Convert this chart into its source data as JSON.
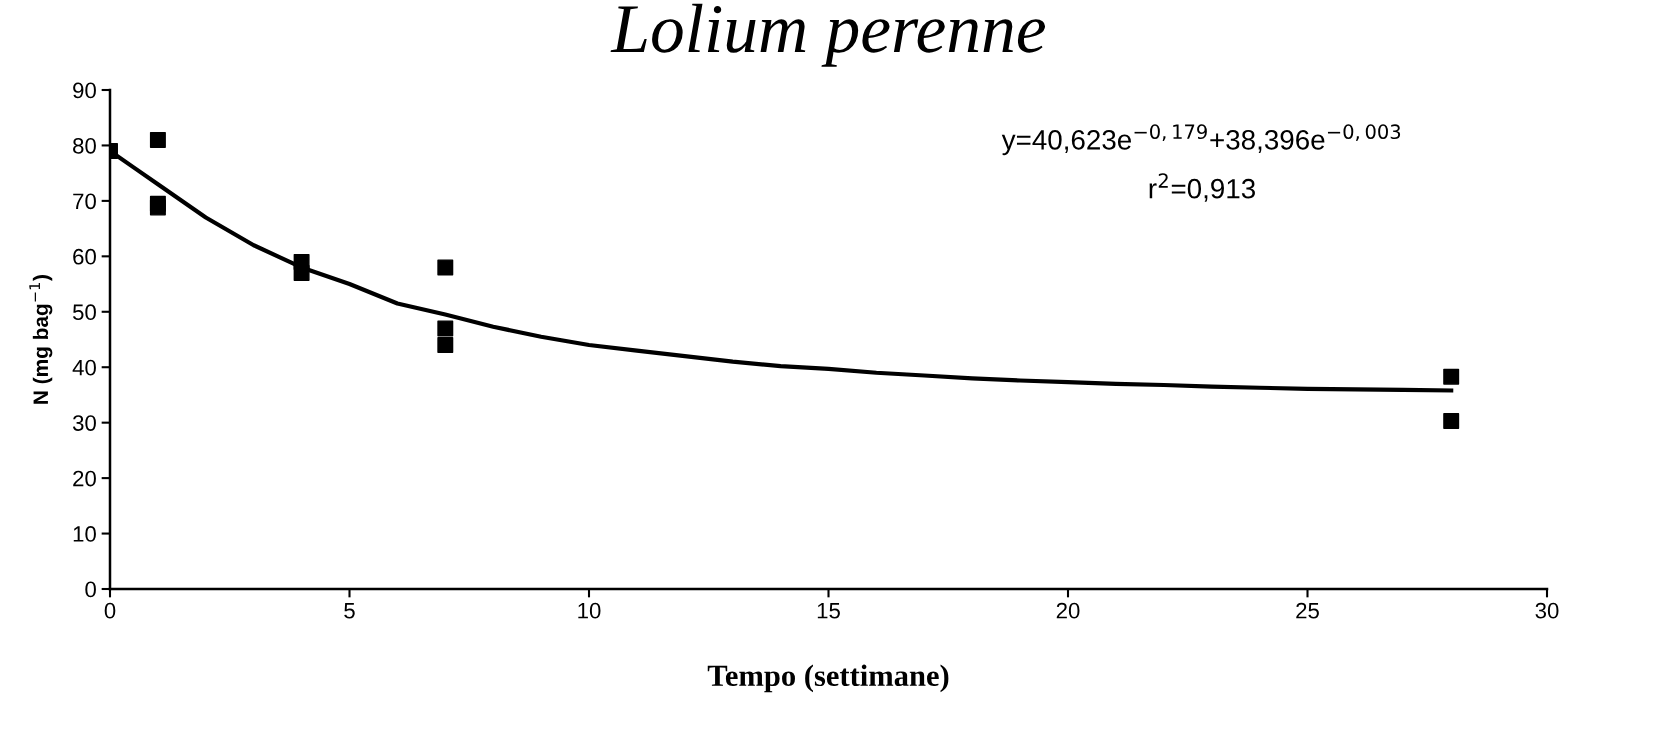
{
  "chart_data": {
    "type": "scatter",
    "title": "Lolium perenne",
    "xlabel": "Tempo (settimane)",
    "ylabel": "N (mg bag$^{−1}$)",
    "annotations": [
      "y=40,623e$^{−0,179}$+38,396e$^{−0,003}$",
      "r$^{2}$=0,913"
    ],
    "xlim": [
      0,
      30
    ],
    "xticks": [
      0,
      5,
      10,
      15,
      20,
      25,
      30
    ],
    "ylim": [
      0,
      90
    ],
    "yticks": [
      0,
      10,
      20,
      30,
      40,
      50,
      60,
      70,
      80,
      90
    ],
    "grid": false,
    "legend": false,
    "series": [
      {
        "marker": "square",
        "color": "#000000",
        "x": [
          0,
          1,
          1,
          1,
          4,
          4,
          7,
          7,
          7,
          28,
          28
        ],
        "values": [
          79,
          81,
          69.5,
          68.8,
          59,
          57,
          58,
          47,
          44,
          38.3,
          30.3
        ]
      },
      {
        "type": "line",
        "marker": "none",
        "line_style": "solid",
        "color": "#000000",
        "x": [
          0,
          0.5,
          1,
          2,
          3,
          4,
          5,
          6,
          7,
          8,
          9,
          10,
          11,
          12,
          13,
          14,
          15,
          16,
          17,
          18,
          19,
          20,
          21,
          22,
          23,
          24,
          25,
          26,
          27,
          28
        ],
        "values": [
          79,
          76,
          73,
          67,
          62,
          58,
          55,
          51.5,
          49.5,
          47.3,
          45.5,
          44,
          43,
          42,
          41,
          40.2,
          39.7,
          39,
          38.5,
          38,
          37.6,
          37.3,
          37,
          36.8,
          36.5,
          36.3,
          36.1,
          36,
          35.9,
          35.8
        ]
      }
    ]
  }
}
